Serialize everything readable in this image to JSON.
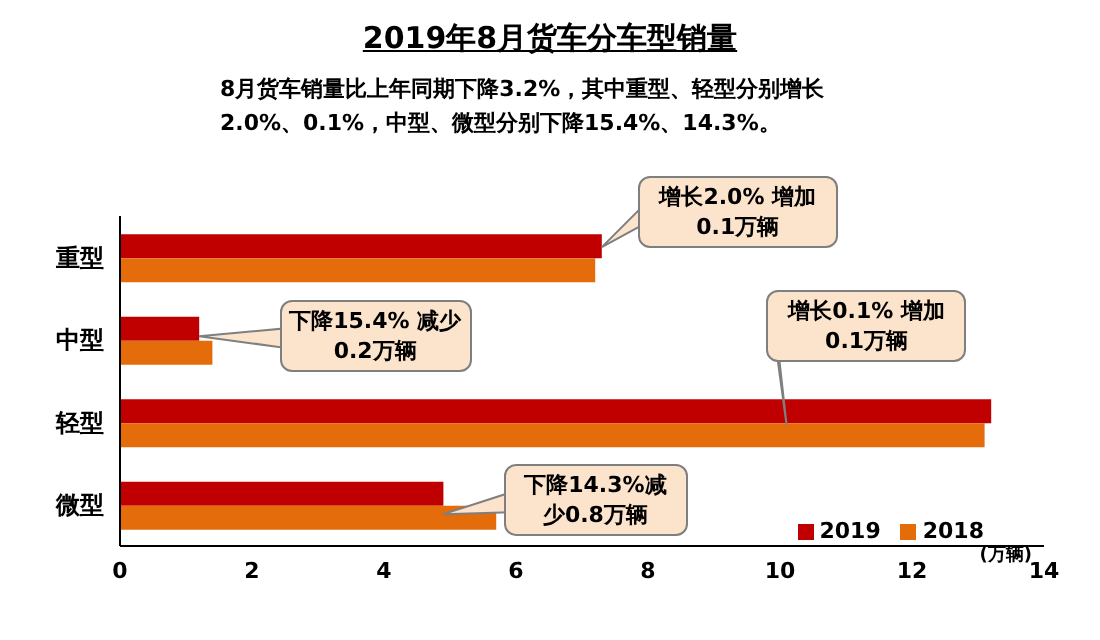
{
  "chart_data": {
    "type": "bar",
    "orientation": "horizontal",
    "title": "2019年8月货车分车型销量",
    "subtitle": "8月货车销量比上年同期下降3.2%，其中重型、轻型分别增长2.0%、0.1%，中型、微型分别下降15.4%、14.3%。",
    "xlabel": "(万辆)",
    "categories": [
      "重型",
      "中型",
      "轻型",
      "微型"
    ],
    "series": [
      {
        "name": "2019",
        "color": "#c00000",
        "values": [
          7.3,
          1.2,
          13.2,
          4.9
        ]
      },
      {
        "name": "2018",
        "color": "#e46c0a",
        "values": [
          7.2,
          1.4,
          13.1,
          5.7
        ]
      }
    ],
    "xlim": [
      0,
      14
    ],
    "xticks": [
      0,
      2,
      4,
      6,
      8,
      10,
      12,
      14
    ],
    "grid": false,
    "legend": "bottom right",
    "annotations": [
      {
        "text": "增长2.0% 增加0.1万辆",
        "x": 7.3,
        "y": "重型"
      },
      {
        "text": "下降15.4% 减少0.2万辆",
        "x": 1.2,
        "y": "中型"
      },
      {
        "text": "增长0.1% 增加0.1万辆",
        "x": 10.1,
        "y": "轻型"
      },
      {
        "text": "下降14.3%减少0.8万辆",
        "x": 4.9,
        "y": "微型"
      }
    ]
  }
}
